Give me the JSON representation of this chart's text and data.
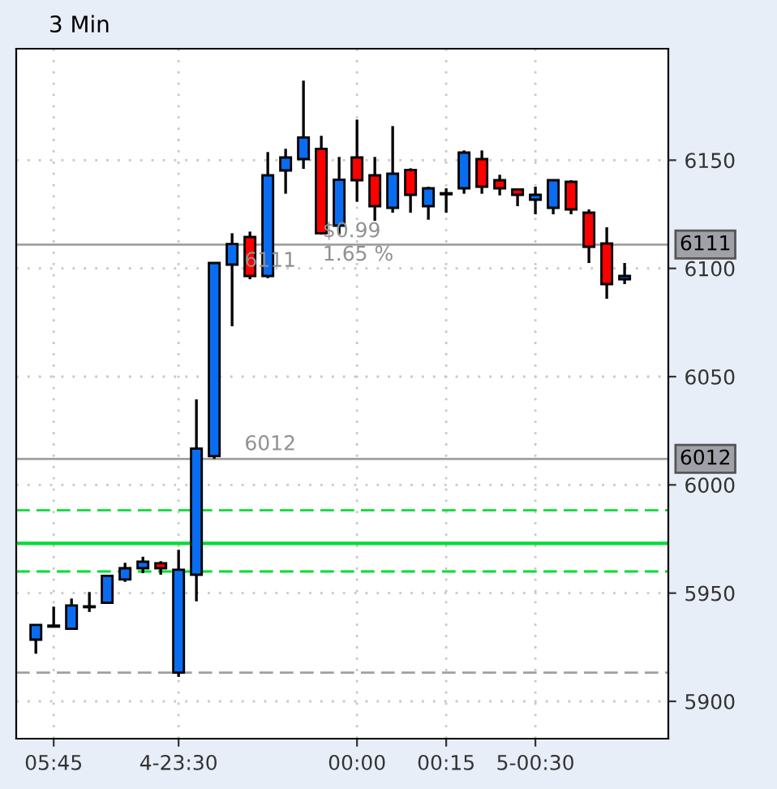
{
  "chart_data": {
    "type": "candlestick",
    "title": "3 Min",
    "categories": [
      null,
      "05:45",
      null,
      null,
      null,
      null,
      null,
      null,
      "4-23:30",
      null,
      null,
      null,
      null,
      null,
      null,
      null,
      null,
      null,
      "00:00",
      null,
      null,
      null,
      null,
      "00:15",
      null,
      null,
      null,
      null,
      "5-00:30",
      null,
      null,
      null,
      null,
      null
    ],
    "ohlc": [
      [
        5928.5,
        5935.5,
        5922,
        5935.3
      ],
      [
        5935,
        5943.75,
        5934.5,
        5934.5
      ],
      [
        5933.5,
        5947.5,
        5933.5,
        5944.3
      ],
      [
        5943.5,
        5950.5,
        5941.3,
        5943.5
      ],
      [
        5945.5,
        5958.5,
        5945.5,
        5958
      ],
      [
        5956.3,
        5964,
        5955.2,
        5961.5
      ],
      [
        5961.5,
        5966.8,
        5959.2,
        5964.5
      ],
      [
        5963.8,
        5964.75,
        5958.5,
        5961.5
      ],
      [
        5913.3,
        5970,
        5911.3,
        5960.8
      ],
      [
        5958.5,
        6039.5,
        5946.2,
        6016.75
      ],
      [
        6013.3,
        6102.5,
        6012,
        6102.5
      ],
      [
        6101.75,
        6116.25,
        6073.3,
        6111.25
      ],
      [
        6114.5,
        6117,
        6095,
        6096.5
      ],
      [
        6096.5,
        6153.75,
        6095.5,
        6143
      ],
      [
        6145.25,
        6155.25,
        6134.5,
        6151.25
      ],
      [
        6150.5,
        6186.75,
        6146,
        6160.5
      ],
      [
        6155.25,
        6161.25,
        6115.75,
        6116.25
      ],
      [
        6119.75,
        6151.5,
        6115.75,
        6141
      ],
      [
        6151.25,
        6168.75,
        6130.75,
        6140.75
      ],
      [
        6143,
        6151.5,
        6122,
        6128.75
      ],
      [
        6128,
        6165.75,
        6125.75,
        6143.75
      ],
      [
        6145.5,
        6146.25,
        6125.75,
        6134
      ],
      [
        6128.75,
        6137.75,
        6122.5,
        6137
      ],
      [
        6134.75,
        6137,
        6125.75,
        6134.25
      ],
      [
        6137,
        6154.5,
        6134.5,
        6153.5
      ],
      [
        6150.5,
        6154.5,
        6134.5,
        6137.75
      ],
      [
        6140.75,
        6143.25,
        6133.75,
        6137
      ],
      [
        6136.5,
        6137,
        6128.75,
        6134
      ],
      [
        6131.75,
        6137.75,
        6125,
        6134
      ],
      [
        6128,
        6140.75,
        6125,
        6140.75
      ],
      [
        6140,
        6140.75,
        6125,
        6127.25
      ],
      [
        6125.75,
        6127.25,
        6102.5,
        6110
      ],
      [
        6111.5,
        6119,
        6086,
        6092.75
      ],
      [
        6095,
        6102.5,
        6092.75,
        6096.5
      ]
    ],
    "colors": [
      "#0a6cf0",
      "#ff0000",
      "#0a6cf0",
      "#0a6cf0",
      "#0a6cf0",
      "#0a6cf0",
      "#0a6cf0",
      "#ff0000",
      "#0a6cf0",
      "#0a6cf0",
      "#0a6cf0",
      "#0a6cf0",
      "#ff0000",
      "#0a6cf0",
      "#0a6cf0",
      "#0a6cf0",
      "#ff0000",
      "#0a6cf0",
      "#ff0000",
      "#ff0000",
      "#0a6cf0",
      "#ff0000",
      "#0a6cf0",
      "#ff0000",
      "#0a6cf0",
      "#ff0000",
      "#ff0000",
      "#ff0000",
      "#0a6cf0",
      "#0a6cf0",
      "#ff0000",
      "#ff0000",
      "#ff0000",
      "#0a6cf0"
    ],
    "ylim": [
      5882.75,
      6201.5
    ],
    "yticks": [
      5900,
      5950,
      6000,
      6050,
      6100,
      6150
    ],
    "grid": true,
    "ref_lines": [
      {
        "axis": "y",
        "value": 5988.25,
        "color": "#00dd33",
        "line_style": "dashed"
      },
      {
        "axis": "y",
        "value": 5973,
        "color": "#00dd33",
        "line_style": "solid"
      },
      {
        "axis": "y",
        "value": 5960,
        "color": "#00dd33",
        "line_style": "dashed"
      },
      {
        "axis": "y",
        "value": 5913.25,
        "color": "#a0a0a0",
        "line_style": "dashed"
      },
      {
        "axis": "y",
        "value": 6012,
        "color": "#a0a0a0",
        "line_style": "solid",
        "label": "6012"
      },
      {
        "axis": "y",
        "value": 6111,
        "color": "#a0a0a0",
        "line_style": "solid",
        "label": "6111"
      }
    ],
    "annotations": [
      {
        "text": "6111",
        "y": 6111
      },
      {
        "text": "6012",
        "y": 6012
      },
      "$0.99",
      "1.65 %"
    ]
  }
}
